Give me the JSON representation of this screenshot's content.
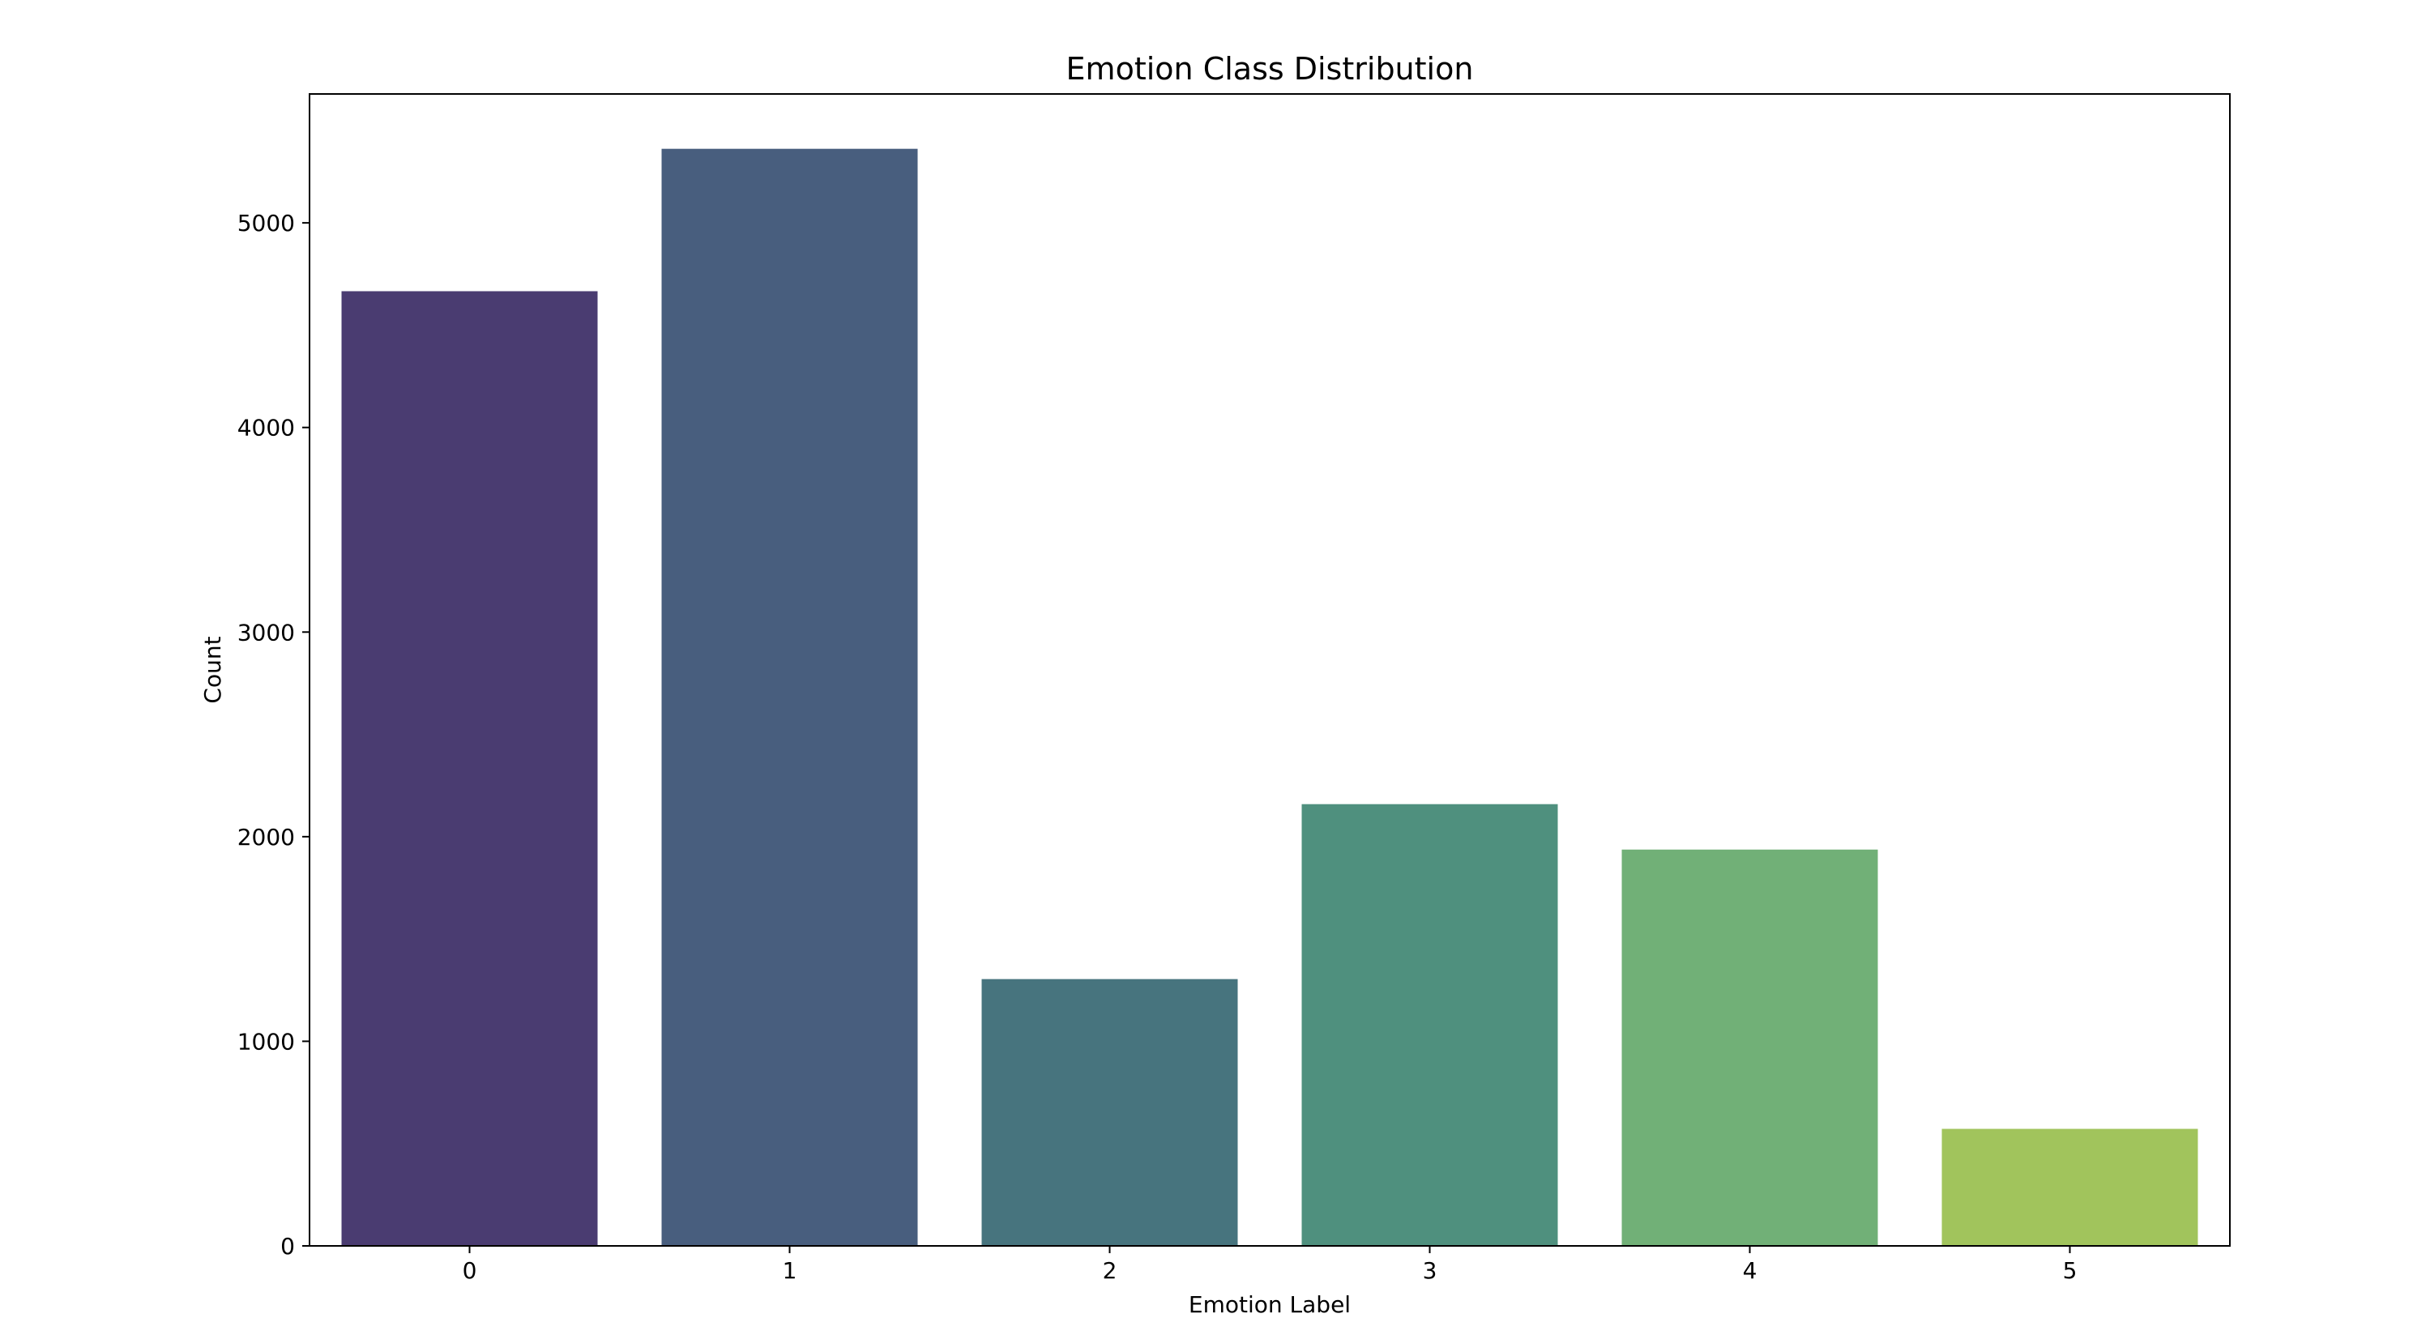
{
  "chart_data": {
    "type": "bar",
    "title": "Emotion Class Distribution",
    "xlabel": "Emotion Label",
    "ylabel": "Count",
    "categories": [
      "0",
      "1",
      "2",
      "3",
      "4",
      "5"
    ],
    "values": [
      4666,
      5362,
      1304,
      2159,
      1937,
      572
    ],
    "colors": [
      "#4a3c71",
      "#485e7e",
      "#47747e",
      "#4f907e",
      "#71b077",
      "#a1c45c"
    ],
    "ylim": [
      0,
      5630
    ],
    "yticks": [
      0,
      1000,
      2000,
      3000,
      4000,
      5000
    ],
    "grid": false,
    "legend": "none"
  }
}
